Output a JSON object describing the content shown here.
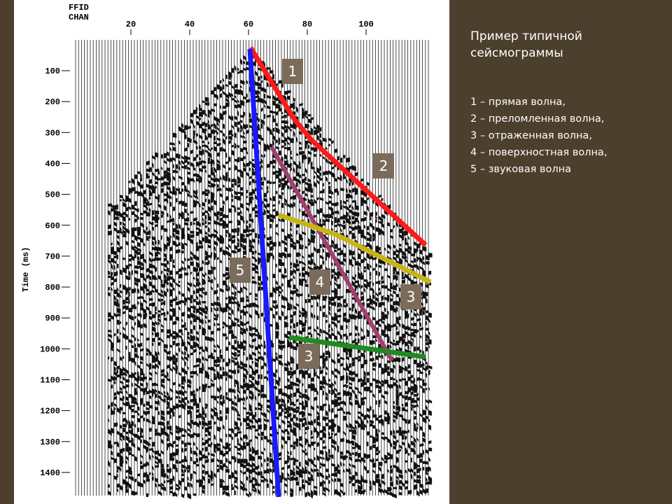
{
  "seismogram": {
    "header": [
      "FFID",
      "CHAN"
    ],
    "channel_ticks": [
      20,
      40,
      60,
      80,
      100
    ],
    "time_ticks": [
      100,
      200,
      300,
      400,
      500,
      600,
      700,
      800,
      900,
      1000,
      1100,
      1200,
      1300,
      1400
    ],
    "time_axis_label": "Time (ms)",
    "wave_labels": [
      "1",
      "2",
      "5",
      "4",
      "3",
      "3"
    ]
  },
  "caption": {
    "title": "Пример типичной сейсмограммы",
    "items": [
      "1 – прямая волна,",
      "2 – преломленная волна,",
      "3 – отраженная волна,",
      "4 – поверхностная волна,",
      "5 – звуковая волна"
    ]
  }
}
